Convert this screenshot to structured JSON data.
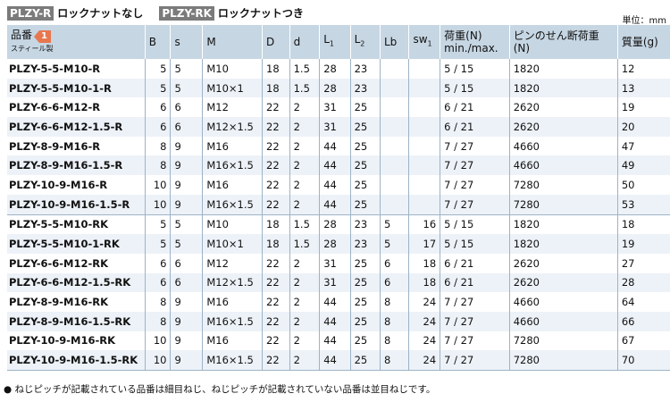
{
  "top": {
    "r_tag": "PLZY-R",
    "r_label": "ロックナットなし",
    "rk_tag": "PLZY-RK",
    "rk_label": "ロックナットつき",
    "unit": "単位：mm"
  },
  "header": {
    "part": "品番",
    "badge": "1",
    "material": "スティール製",
    "B": "B",
    "s": "s",
    "M": "M",
    "D": "D",
    "d": "d",
    "L1": "L",
    "L1_sub": "1",
    "L2": "L",
    "L2_sub": "2",
    "Lb": "Lb",
    "sw1": "sw",
    "sw1_sub": "1",
    "load": "荷重(N)",
    "load2": "min./max.",
    "shear": "ピンのせん断荷重(N)",
    "mass": "質量(g)"
  },
  "rows": [
    [
      "PLZY-5-5-M10-R",
      "5",
      "5",
      "M10",
      "18",
      "1.5",
      "28",
      "23",
      "",
      "",
      "5 / 15",
      "1820",
      "12"
    ],
    [
      "PLZY-5-5-M10-1-R",
      "5",
      "5",
      "M10×1",
      "18",
      "1.5",
      "28",
      "23",
      "",
      "",
      "5 / 15",
      "1820",
      "13"
    ],
    [
      "PLZY-6-6-M12-R",
      "6",
      "6",
      "M12",
      "22",
      "2",
      "31",
      "25",
      "",
      "",
      "6 / 21",
      "2620",
      "19"
    ],
    [
      "PLZY-6-6-M12-1.5-R",
      "6",
      "6",
      "M12×1.5",
      "22",
      "2",
      "31",
      "25",
      "",
      "",
      "6 / 21",
      "2620",
      "20"
    ],
    [
      "PLZY-8-9-M16-R",
      "8",
      "9",
      "M16",
      "22",
      "2",
      "44",
      "25",
      "",
      "",
      "7 / 27",
      "4660",
      "47"
    ],
    [
      "PLZY-8-9-M16-1.5-R",
      "8",
      "9",
      "M16×1.5",
      "22",
      "2",
      "44",
      "25",
      "",
      "",
      "7 / 27",
      "4660",
      "49"
    ],
    [
      "PLZY-10-9-M16-R",
      "10",
      "9",
      "M16",
      "22",
      "2",
      "44",
      "25",
      "",
      "",
      "7 / 27",
      "7280",
      "50"
    ],
    [
      "PLZY-10-9-M16-1.5-R",
      "10",
      "9",
      "M16×1.5",
      "22",
      "2",
      "44",
      "25",
      "",
      "",
      "7 / 27",
      "7280",
      "53"
    ],
    [
      "PLZY-5-5-M10-RK",
      "5",
      "5",
      "M10",
      "18",
      "1.5",
      "28",
      "23",
      "5",
      "16",
      "5 / 15",
      "1820",
      "18"
    ],
    [
      "PLZY-5-5-M10-1-RK",
      "5",
      "5",
      "M10×1",
      "18",
      "1.5",
      "28",
      "23",
      "5",
      "17",
      "5 / 15",
      "1820",
      "19"
    ],
    [
      "PLZY-6-6-M12-RK",
      "6",
      "6",
      "M12",
      "22",
      "2",
      "31",
      "25",
      "6",
      "18",
      "6 / 21",
      "2620",
      "27"
    ],
    [
      "PLZY-6-6-M12-1.5-RK",
      "6",
      "6",
      "M12×1.5",
      "22",
      "2",
      "31",
      "25",
      "6",
      "18",
      "6 / 21",
      "2620",
      "28"
    ],
    [
      "PLZY-8-9-M16-RK",
      "8",
      "9",
      "M16",
      "22",
      "2",
      "44",
      "25",
      "8",
      "24",
      "7 / 27",
      "4660",
      "64"
    ],
    [
      "PLZY-8-9-M16-1.5-RK",
      "8",
      "9",
      "M16×1.5",
      "22",
      "2",
      "44",
      "25",
      "8",
      "24",
      "7 / 27",
      "4660",
      "66"
    ],
    [
      "PLZY-10-9-M16-RK",
      "10",
      "9",
      "M16",
      "22",
      "2",
      "44",
      "25",
      "8",
      "24",
      "7 / 27",
      "7280",
      "67"
    ],
    [
      "PLZY-10-9-M16-1.5-RK",
      "10",
      "9",
      "M16×1.5",
      "22",
      "2",
      "44",
      "25",
      "8",
      "24",
      "7 / 27",
      "7280",
      "70"
    ]
  ],
  "note": "● ねじピッチが記載されている品番は細目ねじ、ねじピッチが記載されていない品番は並目ねじです。",
  "colors": {
    "header_bg": "#c6d6e3",
    "alt_row": "#edf2f8",
    "badge": "#e8774f",
    "tag": "#7b7b7b"
  }
}
